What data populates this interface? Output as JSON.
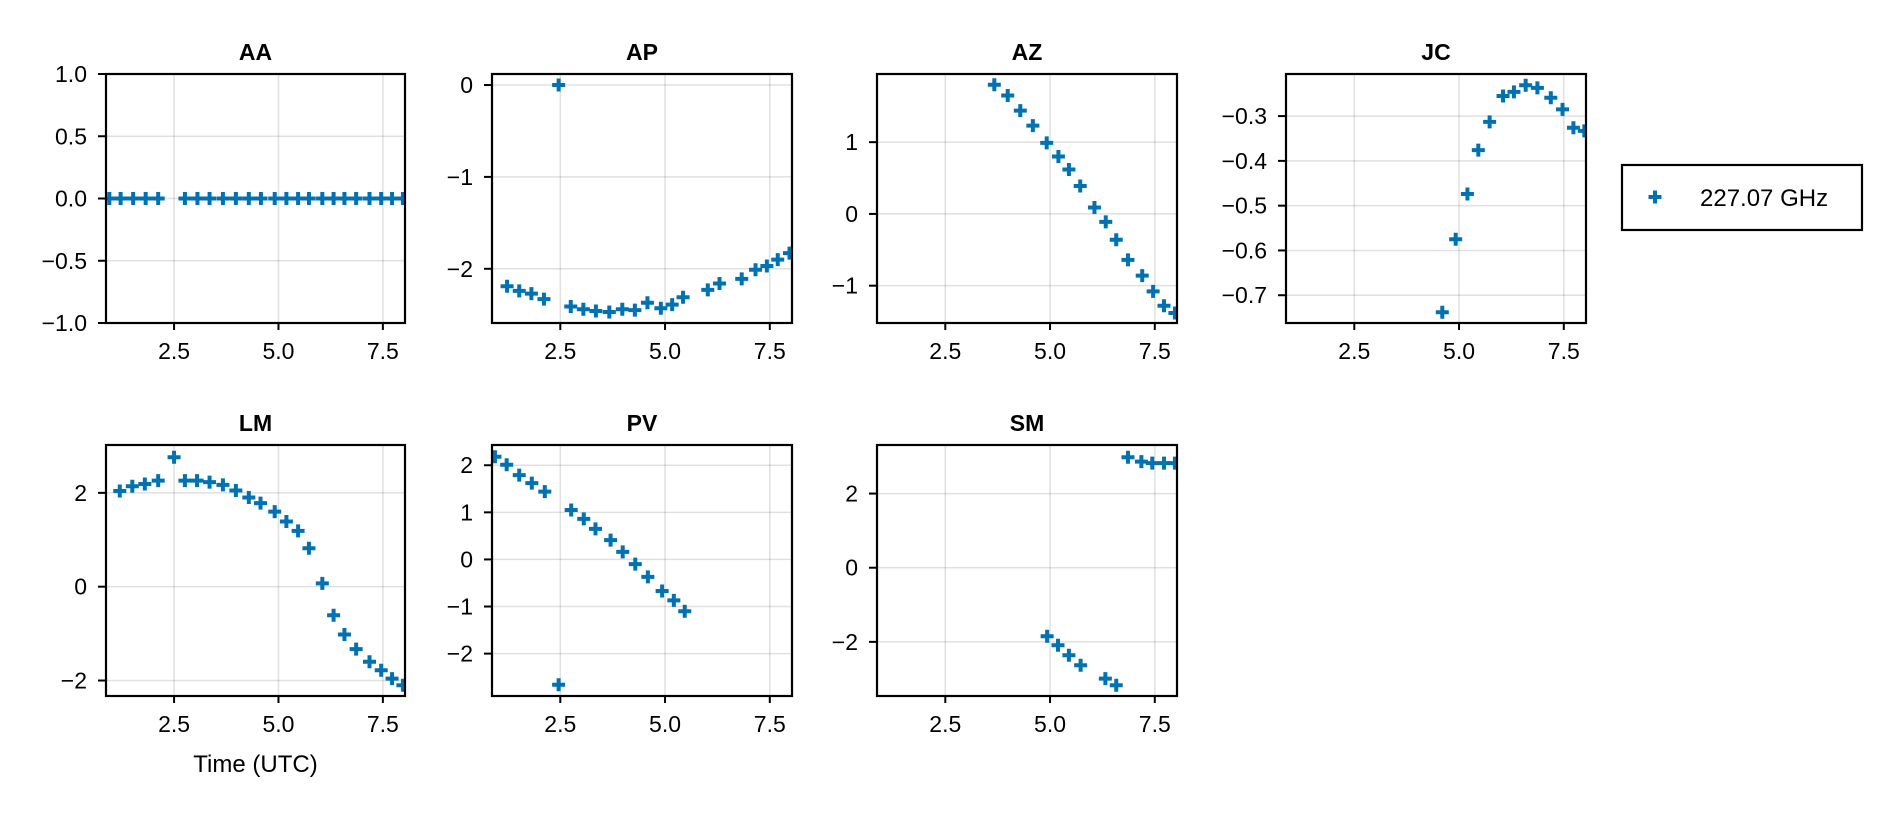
{
  "chart_data": [
    {
      "type": "scatter",
      "title": "AA",
      "xlim": [
        0.87,
        8.03
      ],
      "ylim": [
        -1.0,
        1.0
      ],
      "xticks": [
        2.5,
        5.0,
        7.5
      ],
      "xtick_labels": [
        "2.5",
        "5.0",
        "7.5"
      ],
      "yticks": [
        -1.0,
        -0.5,
        0.0,
        0.5,
        1.0
      ],
      "ytick_labels": [
        "−1.0",
        "−0.5",
        "0.0",
        "0.5",
        "1.0"
      ],
      "xlabel": "",
      "grid": true,
      "series": [
        {
          "name": "227.07 GHz",
          "x": [
            0.95,
            1.22,
            1.52,
            1.82,
            2.12,
            2.76,
            3.06,
            3.35,
            3.67,
            3.98,
            4.29,
            4.58,
            4.91,
            5.19,
            5.47,
            5.73,
            6.05,
            6.32,
            6.58,
            6.86,
            7.18,
            7.46,
            7.72,
            7.98
          ],
          "y": [
            0,
            0,
            0,
            0,
            0,
            0,
            0,
            0,
            0,
            0,
            0,
            0,
            0,
            0,
            0,
            0,
            0,
            0,
            0,
            0,
            0,
            0,
            0,
            0
          ]
        }
      ]
    },
    {
      "type": "scatter",
      "title": "AP",
      "xlim": [
        0.87,
        8.03
      ],
      "ylim": [
        -2.59,
        0.12
      ],
      "xticks": [
        2.5,
        5.0,
        7.5
      ],
      "xtick_labels": [
        "2.5",
        "5.0",
        "7.5"
      ],
      "yticks": [
        -2,
        -1,
        0
      ],
      "ytick_labels": [
        "−2",
        "−1",
        "0"
      ],
      "xlabel": "",
      "grid": true,
      "series": [
        {
          "name": "227.07 GHz",
          "x": [
            1.23,
            1.52,
            1.81,
            2.11,
            2.46,
            2.75,
            3.05,
            3.35,
            3.67,
            3.98,
            4.28,
            4.58,
            4.9,
            5.17,
            5.43,
            6.02,
            6.3,
            6.83,
            7.16,
            7.43,
            7.69,
            7.97
          ],
          "y": [
            -2.19,
            -2.24,
            -2.27,
            -2.33,
            0.0,
            -2.41,
            -2.44,
            -2.46,
            -2.47,
            -2.44,
            -2.45,
            -2.37,
            -2.43,
            -2.39,
            -2.31,
            -2.23,
            -2.16,
            -2.11,
            -2.01,
            -1.97,
            -1.9,
            -1.83
          ]
        }
      ]
    },
    {
      "type": "scatter",
      "title": "AZ",
      "xlim": [
        0.87,
        8.03
      ],
      "ylim": [
        -1.52,
        1.95
      ],
      "xticks": [
        2.5,
        5.0,
        7.5
      ],
      "xtick_labels": [
        "2.5",
        "5.0",
        "7.5"
      ],
      "yticks": [
        -1,
        0,
        1
      ],
      "ytick_labels": [
        "−1",
        "0",
        "1"
      ],
      "xlabel": "",
      "grid": true,
      "series": [
        {
          "name": "227.07 GHz",
          "x": [
            3.67,
            3.99,
            4.29,
            4.59,
            4.92,
            5.2,
            5.45,
            5.72,
            6.06,
            6.33,
            6.58,
            6.86,
            7.2,
            7.46,
            7.72,
            7.98
          ],
          "y": [
            1.8,
            1.65,
            1.44,
            1.23,
            0.99,
            0.8,
            0.62,
            0.39,
            0.09,
            -0.11,
            -0.36,
            -0.64,
            -0.86,
            -1.08,
            -1.28,
            -1.38
          ]
        }
      ]
    },
    {
      "type": "scatter",
      "title": "JC",
      "xlim": [
        0.87,
        8.03
      ],
      "ylim": [
        -0.762,
        -0.206
      ],
      "xticks": [
        2.5,
        5.0,
        7.5
      ],
      "xtick_labels": [
        "2.5",
        "5.0",
        "7.5"
      ],
      "yticks": [
        -0.7,
        -0.6,
        -0.5,
        -0.4,
        -0.3
      ],
      "ytick_labels": [
        "−0.7",
        "−0.6",
        "−0.5",
        "−0.4",
        "−0.3"
      ],
      "xlabel": "",
      "grid": true,
      "series": [
        {
          "name": "227.07 GHz",
          "x": [
            4.6,
            4.92,
            5.2,
            5.46,
            5.73,
            6.05,
            6.31,
            6.59,
            6.87,
            7.19,
            7.47,
            7.73,
            7.99
          ],
          "y": [
            -0.738,
            -0.575,
            -0.474,
            -0.376,
            -0.313,
            -0.255,
            -0.246,
            -0.231,
            -0.237,
            -0.259,
            -0.285,
            -0.326,
            -0.333
          ]
        }
      ]
    },
    {
      "type": "scatter",
      "title": "LM",
      "xlim": [
        0.87,
        8.03
      ],
      "ylim": [
        -2.33,
        3.02
      ],
      "xticks": [
        2.5,
        5.0,
        7.5
      ],
      "xtick_labels": [
        "2.5",
        "5.0",
        "7.5"
      ],
      "yticks": [
        -2,
        0,
        2
      ],
      "ytick_labels": [
        "−2",
        "0",
        "2"
      ],
      "xlabel": "Time (UTC)",
      "grid": true,
      "series": [
        {
          "name": "227.07 GHz",
          "x": [
            1.2,
            1.5,
            1.8,
            2.12,
            2.5,
            2.76,
            3.05,
            3.35,
            3.67,
            3.98,
            4.29,
            4.57,
            4.91,
            5.19,
            5.47,
            5.73,
            6.05,
            6.32,
            6.58,
            6.86,
            7.18,
            7.46,
            7.72,
            7.98
          ],
          "y": [
            2.04,
            2.14,
            2.19,
            2.26,
            2.76,
            2.26,
            2.26,
            2.23,
            2.17,
            2.05,
            1.9,
            1.78,
            1.6,
            1.39,
            1.19,
            0.82,
            0.07,
            -0.61,
            -1.02,
            -1.33,
            -1.6,
            -1.78,
            -1.96,
            -2.1
          ]
        }
      ]
    },
    {
      "type": "scatter",
      "title": "PV",
      "xlim": [
        0.87,
        8.03
      ],
      "ylim": [
        -2.9,
        2.43
      ],
      "xticks": [
        2.5,
        5.0,
        7.5
      ],
      "xtick_labels": [
        "2.5",
        "5.0",
        "7.5"
      ],
      "yticks": [
        -2,
        -1,
        0,
        1,
        2
      ],
      "ytick_labels": [
        "−2",
        "−1",
        "0",
        "1",
        "2"
      ],
      "xlabel": "",
      "grid": true,
      "series": [
        {
          "name": "227.07 GHz",
          "x": [
            0.94,
            1.22,
            1.52,
            1.82,
            2.13,
            2.46,
            2.76,
            3.06,
            3.34,
            3.7,
            3.99,
            4.29,
            4.59,
            4.93,
            5.21,
            5.47
          ],
          "y": [
            2.18,
            2.01,
            1.79,
            1.62,
            1.44,
            -2.66,
            1.05,
            0.86,
            0.65,
            0.41,
            0.16,
            -0.1,
            -0.37,
            -0.67,
            -0.87,
            -1.1
          ]
        }
      ]
    },
    {
      "type": "scatter",
      "title": "SM",
      "xlim": [
        0.87,
        8.03
      ],
      "ylim": [
        -3.46,
        3.31
      ],
      "xticks": [
        2.5,
        5.0,
        7.5
      ],
      "xtick_labels": [
        "2.5",
        "5.0",
        "7.5"
      ],
      "yticks": [
        -2,
        0,
        2
      ],
      "ytick_labels": [
        "−2",
        "0",
        "2"
      ],
      "xlabel": "",
      "grid": true,
      "series": [
        {
          "name": "227.07 GHz",
          "x": [
            4.93,
            5.19,
            5.45,
            5.73,
            6.32,
            6.58,
            6.86,
            7.18,
            7.44,
            7.72,
            7.98
          ],
          "y": [
            -1.85,
            -2.09,
            -2.36,
            -2.63,
            -2.99,
            -3.17,
            2.98,
            2.86,
            2.82,
            2.82,
            2.82
          ]
        }
      ]
    }
  ],
  "legend": {
    "placement": "right",
    "entries": [
      {
        "label": "227.07 GHz",
        "marker": "plus"
      }
    ]
  },
  "colors": {
    "series": "#0072B2"
  }
}
